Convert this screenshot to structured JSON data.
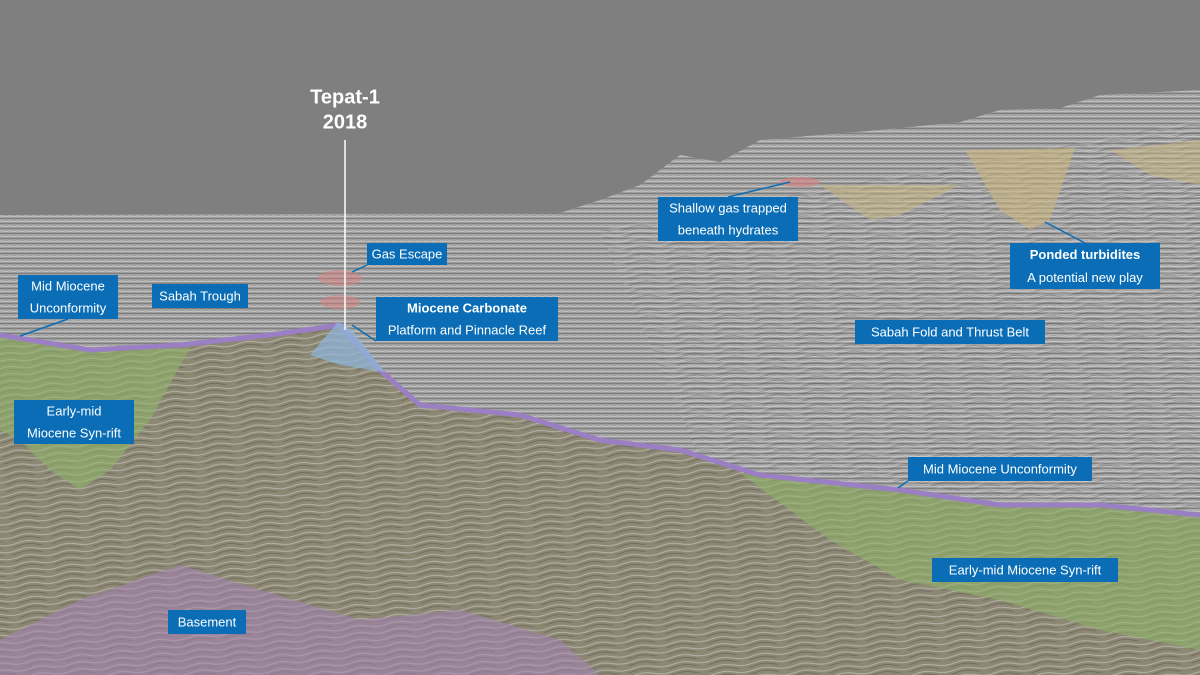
{
  "well": {
    "name": "Tepat-1",
    "year": "2018"
  },
  "labels": [
    {
      "lines": [
        "Gas Escape"
      ]
    },
    {
      "lines": [
        "Mid Miocene",
        "Unconformity"
      ]
    },
    {
      "lines": [
        "Sabah Trough"
      ]
    },
    {
      "lines": [
        "Miocene Carbonate",
        "Platform and Pinnacle Reef"
      ]
    },
    {
      "lines": [
        "Shallow gas trapped",
        "beneath hydrates"
      ]
    },
    {
      "lines": [
        "Ponded turbidites",
        "A potential new play"
      ]
    },
    {
      "lines": [
        "Sabah Fold and Thrust Belt"
      ]
    },
    {
      "lines": [
        "Early-mid",
        "Miocene Syn-rift"
      ]
    },
    {
      "lines": [
        "Mid Miocene Unconformity"
      ]
    },
    {
      "lines": [
        "Early-mid Miocene Syn-rift"
      ]
    },
    {
      "lines": [
        "Basement"
      ]
    }
  ]
}
